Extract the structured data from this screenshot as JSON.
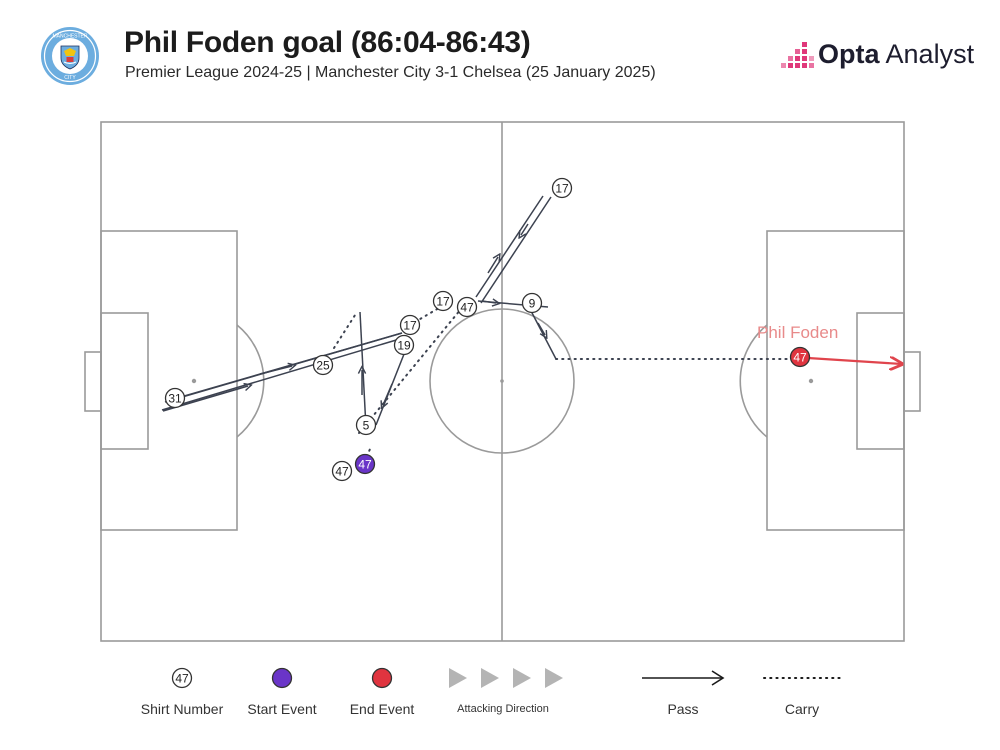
{
  "header": {
    "title": "Phil Foden goal (86:04-86:43)",
    "subtitle": "Premier League 2024-25 | Manchester City 3-1 Chelsea (25 January 2025)",
    "crest_icon": "manchester-city-crest-icon",
    "brand": {
      "bold": "Opta",
      "rest": " Analyst",
      "icon": "opta-bars-logo-icon"
    }
  },
  "pitch": {
    "line_color": "#9a9a9a",
    "player_label": "Phil Foden"
  },
  "players": [
    {
      "number": "17"
    },
    {
      "number": "47"
    },
    {
      "number": "17"
    },
    {
      "number": "9"
    },
    {
      "number": "17"
    },
    {
      "number": "19"
    },
    {
      "number": "25"
    },
    {
      "number": "31"
    },
    {
      "number": "5"
    },
    {
      "number": "47"
    },
    {
      "number": "47",
      "type": "start"
    },
    {
      "number": "47",
      "type": "end"
    }
  ],
  "legend": {
    "shirt_number": "Shirt Number",
    "shirt_sample": "47",
    "start_event": "Start Event",
    "end_event": "End Event",
    "attacking_direction": "Attacking Direction",
    "pass": "Pass",
    "carry": "Carry"
  },
  "colors": {
    "start_event": "#6a35c8",
    "end_event": "#e0343f",
    "end_line": "#e0444c",
    "player_label": "#e88a8a",
    "direction_arrow": "#b4b4b4",
    "brand_pink": "#e0387a"
  }
}
